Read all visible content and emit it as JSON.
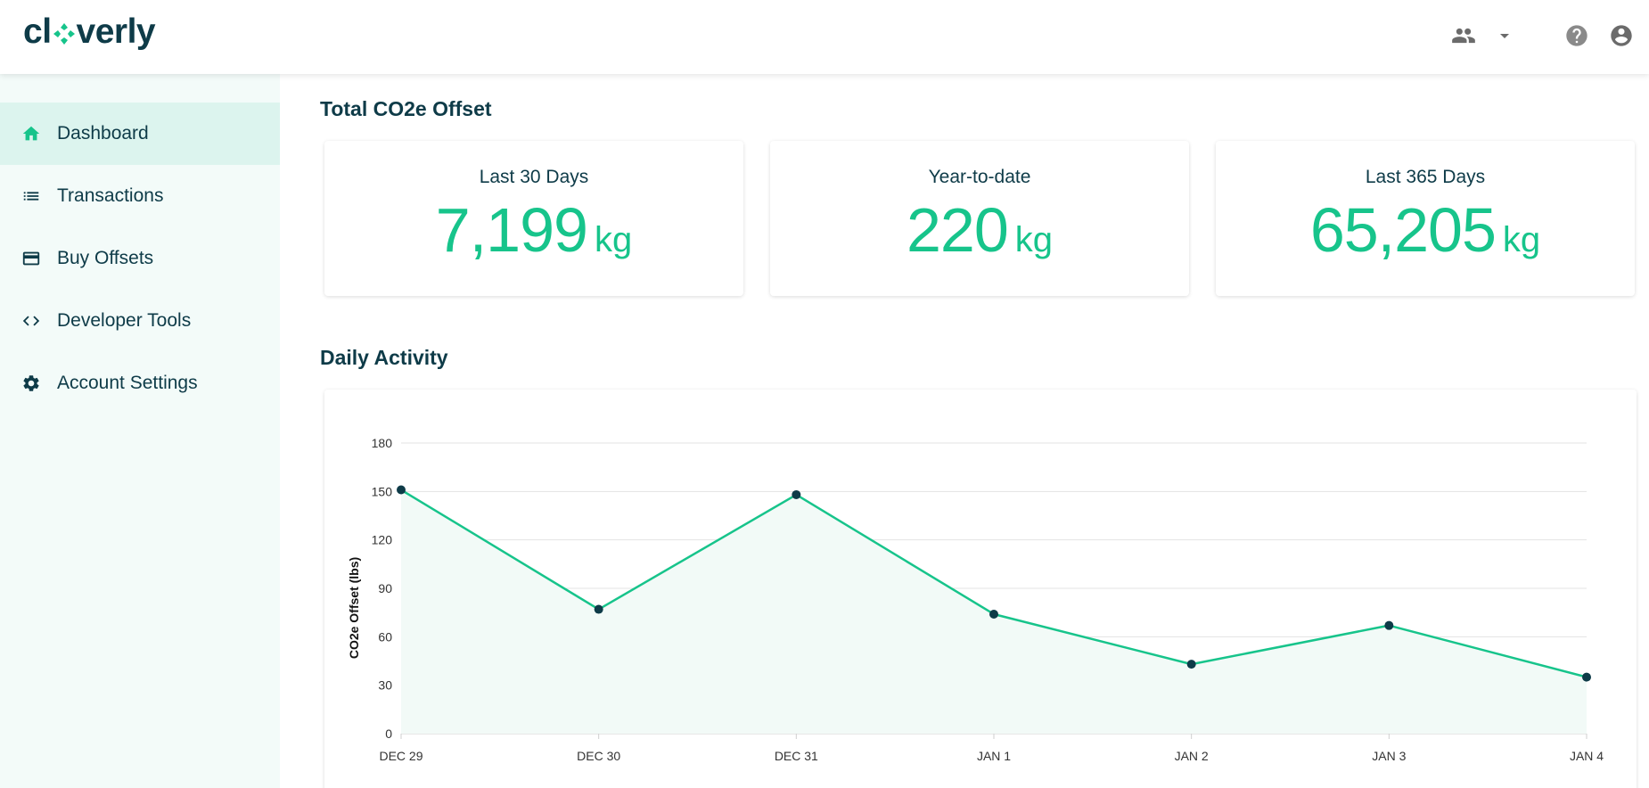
{
  "app": {
    "logo_text_before": "cl",
    "logo_text_after": "verly",
    "brand_color": "#17c48b",
    "dark_color": "#0e3b48"
  },
  "header": {
    "icons": [
      "team-icon",
      "dropdown-arrow-icon",
      "help-icon",
      "account-icon"
    ]
  },
  "sidebar": {
    "items": [
      {
        "label": "Dashboard",
        "icon": "home-icon",
        "active": true
      },
      {
        "label": "Transactions",
        "icon": "list-icon",
        "active": false
      },
      {
        "label": "Buy Offsets",
        "icon": "credit-card-icon",
        "active": false
      },
      {
        "label": "Developer Tools",
        "icon": "code-icon",
        "active": false
      },
      {
        "label": "Account Settings",
        "icon": "gear-icon",
        "active": false
      }
    ]
  },
  "totals": {
    "title": "Total CO2e Offset",
    "cards": [
      {
        "label": "Last 30 Days",
        "value": "7,199",
        "unit": "kg"
      },
      {
        "label": "Year-to-date",
        "value": "220",
        "unit": "kg"
      },
      {
        "label": "Last 365 Days",
        "value": "65,205",
        "unit": "kg"
      }
    ]
  },
  "activity": {
    "title": "Daily Activity"
  },
  "chart_data": {
    "type": "area",
    "categories": [
      "DEC 29",
      "DEC 30",
      "DEC 31",
      "JAN 1",
      "JAN 2",
      "JAN 3",
      "JAN 4"
    ],
    "series": [
      {
        "values": [
          151,
          77,
          148,
          74,
          43,
          67,
          35
        ]
      }
    ],
    "ylabel": "CO2e Offset (lbs)",
    "xlabel": "",
    "ylim": [
      0,
      180
    ],
    "yticks": [
      0,
      30,
      60,
      90,
      120,
      150,
      180
    ],
    "grid": true,
    "line_color": "#17c48b",
    "marker_color": "#0e3b48",
    "fill_color": "#f2faf7"
  }
}
